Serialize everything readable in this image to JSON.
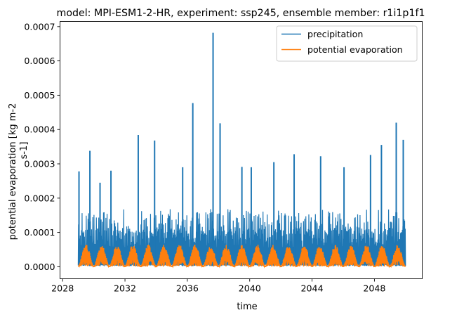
{
  "chart_data": {
    "type": "line",
    "title": "model: MPI-ESM1-2-HR, experiment: ssp245, ensemble member: r1i1p1f1",
    "xlabel": "time",
    "ylabel": [
      "potential evaporation [kg m-2",
      "s-1]"
    ],
    "x_range": [
      "2029-01-01",
      "2049-12-31"
    ],
    "xlim": [
      "2027-11-01",
      "2051-01-25"
    ],
    "xticks": [
      "2028",
      "2032",
      "2036",
      "2040",
      "2044",
      "2048"
    ],
    "xtick_years": [
      2028,
      2032,
      2036,
      2040,
      2044,
      2048
    ],
    "ylim": [
      -3.5e-05,
      0.000715
    ],
    "yticks": [
      "0.0000",
      "0.0001",
      "0.0002",
      "0.0003",
      "0.0004",
      "0.0005",
      "0.0006",
      "0.0007"
    ],
    "ytick_values": [
      0,
      0.0001,
      0.0002,
      0.0003,
      0.0004,
      0.0005,
      0.0006,
      0.0007
    ],
    "grid": false,
    "legend": {
      "position": "upper right"
    },
    "series": [
      {
        "name": "precipitation",
        "color": "#1f77b4",
        "baseline": 2e-06,
        "typical_upper_envelope": 0.00016,
        "peak_values": [
          {
            "x": 2029.05,
            "y": 0.000278
          },
          {
            "x": 2029.75,
            "y": 0.000338
          },
          {
            "x": 2030.4,
            "y": 0.000245
          },
          {
            "x": 2031.1,
            "y": 0.00028
          },
          {
            "x": 2032.85,
            "y": 0.000384
          },
          {
            "x": 2033.9,
            "y": 0.000368
          },
          {
            "x": 2035.7,
            "y": 0.00029
          },
          {
            "x": 2036.35,
            "y": 0.000477
          },
          {
            "x": 2037.65,
            "y": 0.000682
          },
          {
            "x": 2038.1,
            "y": 0.000418
          },
          {
            "x": 2039.5,
            "y": 0.000291
          },
          {
            "x": 2040.1,
            "y": 0.00029
          },
          {
            "x": 2041.55,
            "y": 0.000305
          },
          {
            "x": 2042.85,
            "y": 0.000328
          },
          {
            "x": 2044.55,
            "y": 0.000322
          },
          {
            "x": 2046.05,
            "y": 0.00029
          },
          {
            "x": 2047.75,
            "y": 0.000326
          },
          {
            "x": 2048.45,
            "y": 0.000355
          },
          {
            "x": 2049.4,
            "y": 0.00042
          },
          {
            "x": 2049.85,
            "y": 0.00037
          }
        ]
      },
      {
        "name": "potential evaporation",
        "color": "#ff7f0e",
        "seasonal": true,
        "min": 5e-07,
        "max": 6.5e-05
      }
    ]
  }
}
